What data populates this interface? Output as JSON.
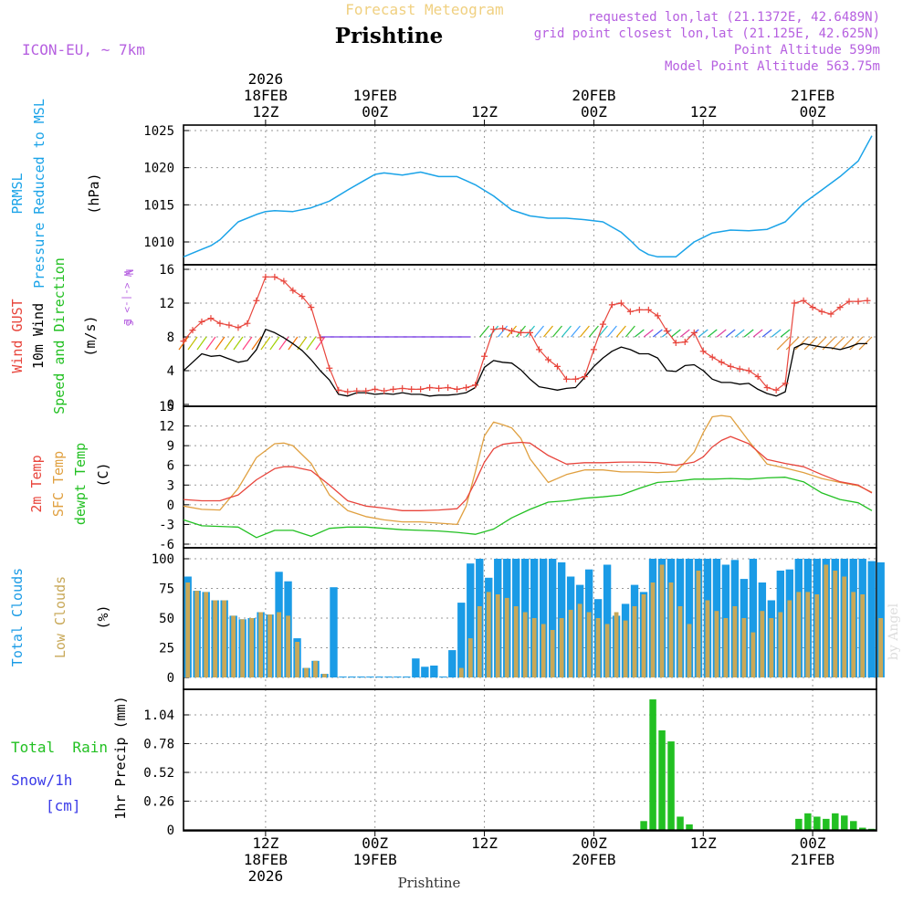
{
  "header": {
    "super_title": "Forecast Meteogram",
    "location": "Prishtine",
    "model": "ICON-EU, ~ 7km",
    "requested": "requested lon,lat (21.1372E, 42.6489N)",
    "closest": "grid point closest lon,lat (21.125E, 42.625N)",
    "point_alt": "Point Altitude 599m",
    "model_alt": "Model Point Altitude 563.75m",
    "footer": "Prishtine",
    "credit": "by Angel"
  },
  "colors": {
    "pressure": "#1aa3e8",
    "gust": "#e8453c",
    "wind": "#000000",
    "t2m": "#e8453c",
    "sfc": "#e0a040",
    "dewpt": "#22c022",
    "total_clouds": "#1a9be6",
    "low_clouds": "#c8a858",
    "rain": "#22c022",
    "magenta": "#b660e0",
    "title_gold": "#f0d080"
  },
  "time_axis": {
    "top_labels": [
      {
        "step": 9,
        "lines": [
          "2026",
          "18FEB",
          "12Z"
        ]
      },
      {
        "step": 21,
        "lines": [
          "19FEB",
          "00Z"
        ]
      },
      {
        "step": 33,
        "lines": [
          "12Z"
        ]
      },
      {
        "step": 45,
        "lines": [
          "20FEB",
          "00Z"
        ]
      },
      {
        "step": 57,
        "lines": [
          "12Z"
        ]
      },
      {
        "step": 69,
        "lines": [
          "21FEB",
          "00Z"
        ]
      }
    ],
    "bottom_labels": [
      {
        "step": 9,
        "lines": [
          "12Z",
          "18FEB",
          "2026"
        ]
      },
      {
        "step": 21,
        "lines": [
          "00Z",
          "19FEB"
        ]
      },
      {
        "step": 33,
        "lines": [
          "12Z"
        ]
      },
      {
        "step": 45,
        "lines": [
          "00Z",
          "20FEB"
        ]
      },
      {
        "step": 57,
        "lines": [
          "12Z"
        ]
      },
      {
        "step": 69,
        "lines": [
          "00Z",
          "21FEB"
        ]
      }
    ]
  },
  "panels": {
    "pressure": {
      "labels": [
        "PRMSL",
        "Pressure Reduced to MSL"
      ],
      "unit": "(hPa)"
    },
    "wind": {
      "labels": [
        "Wind GUST",
        "10m Wind",
        "Speed and Direction"
      ],
      "unit": "(m/s)",
      "compass": [
        "N",
        "W <-|-> E",
        "S"
      ]
    },
    "temp": {
      "labels": [
        "2m Temp",
        "SFC Temp",
        "dewpt Temp"
      ],
      "unit": "(C)"
    },
    "clouds": {
      "labels": [
        "Total Clouds",
        "Low Clouds"
      ],
      "unit": "(%)"
    },
    "precip": {
      "labels": [
        "Total  Rain",
        "Snow/1h",
        "[cm]"
      ],
      "unit": "1hr Precip (mm)"
    }
  },
  "chart_data": [
    {
      "type": "line",
      "title": "PRMSL Pressure Reduced to MSL",
      "ylabel": "(hPa)",
      "x_unit": "forecast hour (0 = 18FEB 03Z)",
      "ylim": [
        1007.5,
        1025.5
      ],
      "yticks": [
        1010,
        1015,
        1020,
        1025
      ],
      "series": [
        {
          "name": "PRMSL",
          "x": [
            0,
            2,
            3,
            4,
            6,
            8,
            9,
            10,
            12,
            14,
            16,
            18,
            20,
            21,
            22,
            24,
            26,
            28,
            30,
            32,
            34,
            36,
            38,
            40,
            42,
            44,
            46,
            48,
            49,
            50,
            51,
            52,
            54,
            56,
            58,
            60,
            62,
            64,
            66,
            68,
            70,
            72,
            74,
            75.5
          ],
          "values": [
            1008,
            1009,
            1009.5,
            1010.3,
            1012.7,
            1013.7,
            1014.1,
            1014.2,
            1014.1,
            1014.6,
            1015.5,
            1017.0,
            1018.4,
            1019.1,
            1019.3,
            1019.0,
            1019.4,
            1018.8,
            1018.8,
            1017.7,
            1016.2,
            1014.3,
            1013.5,
            1013.2,
            1013.2,
            1013.0,
            1012.7,
            1011.3,
            1010.2,
            1009.0,
            1008.3,
            1008.0,
            1008.0,
            1010.0,
            1011.2,
            1011.6,
            1011.5,
            1011.7,
            1012.7,
            1015.2,
            1017.0,
            1018.8,
            1020.9,
            1024.3
          ]
        }
      ]
    },
    {
      "type": "line",
      "title": "Wind GUST / 10m Wind Speed and Direction",
      "ylabel": "(m/s)",
      "ylim": [
        0,
        16
      ],
      "yticks": [
        0,
        4,
        8,
        12,
        16
      ],
      "series": [
        {
          "name": "Wind GUST",
          "x": [
            0,
            1,
            2,
            3,
            4,
            5,
            6,
            7,
            8,
            9,
            10,
            11,
            12,
            13,
            14,
            15,
            16,
            17,
            18,
            19,
            20,
            21,
            22,
            23,
            24,
            25,
            26,
            27,
            28,
            29,
            30,
            31,
            32,
            33,
            34,
            35,
            36,
            37,
            38,
            39,
            40,
            41,
            42,
            43,
            44,
            45,
            46,
            47,
            48,
            49,
            50,
            51,
            52,
            53,
            54,
            55,
            56,
            57,
            58,
            59,
            60,
            61,
            62,
            63,
            64,
            65,
            66,
            67,
            68,
            69,
            70,
            71,
            72,
            73,
            74,
            75
          ],
          "values": [
            7.5,
            8.8,
            9.8,
            10.2,
            9.6,
            9.4,
            9.1,
            9.6,
            12.3,
            15.1,
            15.1,
            14.6,
            13.5,
            12.8,
            11.5,
            7.9,
            4.3,
            1.7,
            1.5,
            1.6,
            1.6,
            1.8,
            1.6,
            1.8,
            1.9,
            1.8,
            1.8,
            2.0,
            1.9,
            2.0,
            1.8,
            2.0,
            2.3,
            5.7,
            8.9,
            9.0,
            8.7,
            8.5,
            8.5,
            6.5,
            5.3,
            4.5,
            3.0,
            3.0,
            3.3,
            6.5,
            9.5,
            11.8,
            12.0,
            11.0,
            11.2,
            11.2,
            10.5,
            8.7,
            7.3,
            7.4,
            8.5,
            6.3,
            5.6,
            5.0,
            4.5,
            4.2,
            4.0,
            3.3,
            2.0,
            1.7,
            2.5,
            12.0,
            12.3,
            11.5,
            11.0,
            10.7,
            11.5,
            12.2,
            12.2,
            12.3
          ]
        },
        {
          "name": "10m Wind",
          "x": [
            0,
            1,
            2,
            3,
            4,
            5,
            6,
            7,
            8,
            9,
            10,
            11,
            12,
            13,
            14,
            15,
            16,
            17,
            18,
            19,
            20,
            21,
            22,
            23,
            24,
            25,
            26,
            27,
            28,
            29,
            30,
            31,
            32,
            33,
            34,
            35,
            36,
            37,
            38,
            39,
            40,
            41,
            42,
            43,
            44,
            45,
            46,
            47,
            48,
            49,
            50,
            51,
            52,
            53,
            54,
            55,
            56,
            57,
            58,
            59,
            60,
            61,
            62,
            63,
            64,
            65,
            66,
            67,
            68,
            69,
            70,
            71,
            72,
            73,
            74,
            75
          ],
          "values": [
            4,
            5,
            6,
            5.7,
            5.8,
            5.4,
            5.0,
            5.2,
            6.5,
            8.9,
            8.5,
            7.9,
            7.2,
            6.4,
            5.3,
            4.0,
            2.9,
            1.2,
            1.0,
            1.4,
            1.4,
            1.2,
            1.3,
            1.2,
            1.4,
            1.2,
            1.2,
            1.0,
            1.1,
            1.1,
            1.2,
            1.4,
            2.0,
            4.4,
            5.2,
            5.0,
            4.9,
            4.1,
            3.0,
            2.1,
            1.9,
            1.7,
            1.9,
            2.0,
            3.2,
            4.5,
            5.5,
            6.3,
            6.8,
            6.5,
            6.0,
            6.0,
            5.5,
            4.0,
            3.9,
            4.6,
            4.7,
            4.0,
            3.0,
            2.6,
            2.6,
            2.4,
            2.5,
            1.8,
            1.3,
            1.0,
            1.5,
            6.7,
            7.2,
            7.0,
            6.8,
            6.7,
            6.5,
            6.8,
            7.2,
            7.2
          ]
        }
      ]
    },
    {
      "type": "line",
      "title": "2m Temp / SFC Temp / dewpt Temp",
      "ylabel": "(C)",
      "ylim": [
        -6,
        15
      ],
      "yticks": [
        -6,
        -3,
        0,
        3,
        6,
        9,
        12,
        15
      ],
      "series": [
        {
          "name": "2m Temp",
          "x": [
            0,
            2,
            4,
            6,
            8,
            10,
            11,
            12,
            14,
            16,
            18,
            20,
            22,
            24,
            26,
            28,
            30,
            31,
            32,
            33,
            34,
            35,
            36,
            37,
            38,
            40,
            42,
            44,
            46,
            48,
            50,
            52,
            54,
            56,
            57,
            58,
            59,
            60,
            62,
            64,
            66,
            68,
            70,
            72,
            74,
            75.5
          ],
          "values": [
            0.8,
            0.6,
            0.6,
            1.5,
            3.8,
            5.5,
            5.8,
            5.8,
            5.2,
            3.0,
            0.6,
            -0.2,
            -0.5,
            -0.9,
            -0.9,
            -0.8,
            -0.6,
            0.8,
            3.5,
            6.5,
            8.5,
            9.2,
            9.4,
            9.5,
            9.4,
            7.5,
            6.2,
            6.4,
            6.4,
            6.5,
            6.5,
            6.4,
            6.0,
            6.5,
            7.3,
            8.8,
            9.8,
            10.4,
            9.3,
            6.9,
            6.3,
            5.8,
            4.6,
            3.5,
            3.0,
            1.8
          ]
        },
        {
          "name": "SFC Temp",
          "x": [
            0,
            2,
            4,
            6,
            8,
            10,
            11,
            12,
            14,
            16,
            18,
            20,
            22,
            24,
            26,
            28,
            30,
            31,
            32,
            33,
            34,
            35,
            36,
            37,
            38,
            40,
            42,
            44,
            46,
            48,
            50,
            52,
            54,
            56,
            57,
            58,
            59,
            60,
            62,
            64,
            66,
            68,
            70,
            72,
            74,
            75.5
          ],
          "values": [
            -0.2,
            -0.7,
            -0.8,
            2.5,
            7.2,
            9.3,
            9.4,
            9.0,
            6.3,
            1.5,
            -0.9,
            -1.8,
            -2.3,
            -2.6,
            -2.6,
            -2.8,
            -3.0,
            -0.2,
            5.0,
            10.5,
            12.6,
            12.2,
            11.7,
            10.1,
            7.0,
            3.4,
            4.6,
            5.3,
            5.3,
            5.0,
            5.0,
            4.9,
            5.0,
            8.0,
            11.0,
            13.4,
            13.6,
            13.4,
            9.7,
            6.2,
            5.6,
            4.9,
            4.0,
            3.4,
            2.9,
            1.9
          ]
        },
        {
          "name": "dewpt Temp",
          "x": [
            0,
            2,
            4,
            6,
            8,
            10,
            12,
            14,
            16,
            18,
            20,
            22,
            24,
            26,
            28,
            30,
            32,
            34,
            36,
            38,
            40,
            42,
            44,
            46,
            48,
            50,
            52,
            54,
            56,
            58,
            60,
            62,
            64,
            66,
            68,
            70,
            72,
            74,
            75.5
          ],
          "values": [
            -2.3,
            -3.2,
            -3.3,
            -3.4,
            -5.0,
            -3.9,
            -3.9,
            -4.8,
            -3.6,
            -3.4,
            -3.4,
            -3.6,
            -3.8,
            -3.9,
            -4.0,
            -4.2,
            -4.5,
            -3.7,
            -2.0,
            -0.7,
            0.4,
            0.6,
            1.0,
            1.2,
            1.5,
            2.5,
            3.4,
            3.6,
            3.9,
            3.9,
            4.0,
            3.9,
            4.1,
            4.2,
            3.5,
            1.8,
            0.8,
            0.3,
            -0.9
          ]
        }
      ]
    },
    {
      "type": "bar",
      "title": "Total Clouds / Low Clouds",
      "ylabel": "(%)",
      "ylim": [
        0,
        100
      ],
      "yticks": [
        0,
        25,
        50,
        75,
        100
      ],
      "series": [
        {
          "name": "Total Clouds",
          "values": [
            85,
            73,
            72,
            65,
            65,
            52,
            49,
            50,
            55,
            53,
            89,
            81,
            33,
            8,
            14,
            3,
            76,
            0,
            0,
            0,
            0,
            0,
            0,
            0,
            0,
            16,
            9,
            10,
            0,
            23,
            63,
            96,
            100,
            84,
            100,
            100,
            100,
            100,
            100,
            100,
            100,
            97,
            85,
            78,
            91,
            66,
            95,
            52,
            62,
            78,
            72,
            100,
            100,
            100,
            100,
            100,
            100,
            100,
            100,
            95,
            99,
            83,
            100,
            80,
            65,
            90,
            91,
            100,
            100,
            100,
            100,
            100,
            100,
            100,
            100,
            98,
            97
          ]
        },
        {
          "name": "Low Clouds",
          "values": [
            80,
            73,
            72,
            65,
            65,
            52,
            49,
            50,
            55,
            53,
            55,
            52,
            30,
            8,
            14,
            3,
            0,
            0,
            0,
            0,
            0,
            0,
            0,
            0,
            0,
            0,
            0,
            0,
            0,
            0,
            8,
            33,
            60,
            72,
            70,
            67,
            60,
            55,
            50,
            45,
            40,
            50,
            57,
            62,
            55,
            50,
            45,
            55,
            48,
            60,
            70,
            80,
            95,
            80,
            60,
            45,
            90,
            65,
            56,
            50,
            60,
            50,
            38,
            56,
            50,
            55,
            65,
            72,
            72,
            70,
            95,
            90,
            85,
            72,
            70,
            0,
            50
          ]
        }
      ]
    },
    {
      "type": "bar",
      "title": "1hr Precip",
      "ylabel": "1hr Precip (mm)",
      "ylim": [
        0,
        1.2
      ],
      "yticks": [
        0,
        0.26,
        0.52,
        0.78,
        1.04
      ],
      "series": [
        {
          "name": "Total Rain",
          "start_step": 50,
          "values": [
            0.08,
            1.18,
            0.9,
            0.8,
            0.12,
            0.05
          ]
        },
        {
          "name": "Total Rain",
          "start_step": 67,
          "values": [
            0.1,
            0.15,
            0.12,
            0.1,
            0.15,
            0.13,
            0.08,
            0.02,
            0.01
          ]
        }
      ]
    }
  ]
}
